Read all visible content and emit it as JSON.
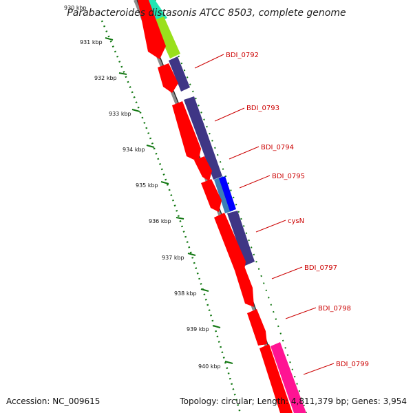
{
  "map": {
    "title": "Parabacteroides distasonis ATCC 8503, complete genome",
    "accession": "Accession: NC_009615",
    "summary": "Topology: circular; Length: 4,811,379 bp; Genes: 3,954"
  },
  "ruler": {
    "tick_labels": [
      "930 kbp",
      "931 kbp",
      "932 kbp",
      "933 kbp",
      "934 kbp",
      "935 kbp",
      "936 kbp",
      "937 kbp",
      "938 kbp",
      "939 kbp",
      "940 kbp"
    ]
  },
  "genes": {
    "labels": [
      "BDI_0792",
      "BDI_0793",
      "BDI_0794",
      "BDI_0795",
      "cysN",
      "BDI_0797",
      "BDI_0798",
      "BDI_0799"
    ]
  },
  "colors": {
    "label_red": "#cc0000",
    "cds_red": "#ff0000",
    "cog_purple": "#3f3685",
    "cog_blue": "#0000ff",
    "cog_lightblue": "#3c7fb6",
    "cog_green": "#99e01c",
    "cog_cyan": "#22e5b3",
    "cog_pink": "#ff1493",
    "backbone_gray": "#8c8c8c",
    "ruler_green": "#117711"
  }
}
